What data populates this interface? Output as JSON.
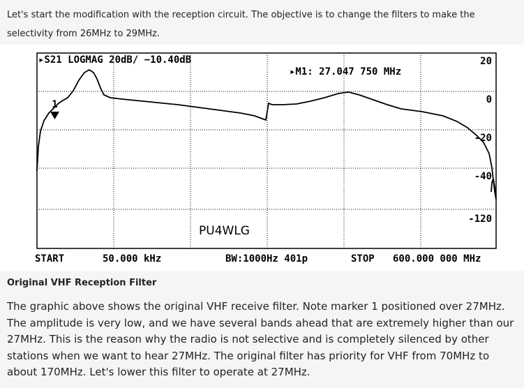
{
  "intro": {
    "text": "Let's start the modification with the reception circuit. The objective is to change the filters to make the selectivity from 26MHz to 29MHz."
  },
  "analyzer": {
    "trace_header": "▸S21 LOGMAG 20dB/ −10.40dB",
    "marker_readout": "▸M1: 27.047 750 MHz",
    "marker_label": "1",
    "scale_labels": [
      "20",
      "0",
      "-20",
      "-40",
      "-120"
    ],
    "watermark": "PU4WLG",
    "footer": {
      "start_label": "START",
      "start_value": "50.000 kHz",
      "bw": "BW:1000Hz 401p",
      "stop_label": "STOP",
      "stop_value": "600.000 000 MHz"
    }
  },
  "caption": {
    "title": "Original VHF Reception Filter",
    "body": "The graphic above shows the original VHF receive filter. Note marker 1 positioned over 27MHz. The amplitude is very low, and we have several bands ahead that are extremely higher than our 27MHz. This is the reason why the radio is not selective and is completely silenced by other stations when we want to hear 27MHz. The original filter has priority for VHF from 70MHz to about 170MHz. Let's lower this filter to operate at 27MHz."
  }
}
